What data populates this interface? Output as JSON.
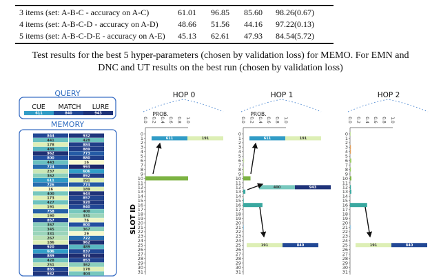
{
  "table": {
    "rows": [
      {
        "label": "3 items (set: A-B-C - accuracy on A-C)",
        "values": [
          "61.01",
          "96.85",
          "85.60",
          "98.26(0.67)"
        ]
      },
      {
        "label": "4 items (set: A-B-C-D - accuracy on A-D)",
        "values": [
          "48.66",
          "51.56",
          "44.16",
          "97.22(0.13)"
        ]
      },
      {
        "label": "5 items (set: A-B-C-D-E - accuracy on A-E)",
        "values": [
          "45.13",
          "62.61",
          "47.93",
          "84.54(5.72)"
        ]
      }
    ]
  },
  "caption": {
    "line1": "Test results for the best 5 hyper-parameters (chosen by validation loss) for MEMO. For EMN and",
    "line2": "DNC and UT results on the best run (chosen by validation loss)"
  },
  "figure": {
    "query": {
      "title": "QUERY",
      "labels": [
        "CUE",
        "MATCH",
        "LURE"
      ],
      "values": [
        "611",
        "840",
        "943"
      ]
    },
    "memory": {
      "title": "MEMORY",
      "rows": [
        [
          "844",
          "932"
        ],
        [
          "441",
          "428"
        ],
        [
          "178",
          "884"
        ],
        [
          "489",
          "889"
        ],
        [
          "962",
          "773"
        ],
        [
          "800",
          "880"
        ],
        [
          "443",
          "16"
        ],
        [
          "724",
          "993"
        ],
        [
          "237",
          "606"
        ],
        [
          "362",
          "892"
        ],
        [
          "611",
          "191"
        ],
        [
          "726",
          "774"
        ],
        [
          "16",
          "189"
        ],
        [
          "400",
          "943"
        ],
        [
          "173",
          "857"
        ],
        [
          "427",
          "920"
        ],
        [
          "191",
          "840"
        ],
        [
          "758",
          "400"
        ],
        [
          "190",
          "331"
        ],
        [
          "857",
          "76"
        ],
        [
          "367",
          "800"
        ],
        [
          "345",
          "367"
        ],
        [
          "331",
          "29"
        ],
        [
          "267",
          "722"
        ],
        [
          "186",
          "962"
        ],
        [
          "920",
          "489"
        ],
        [
          "606",
          "837"
        ],
        [
          "889",
          "974"
        ],
        [
          "428",
          "853"
        ],
        [
          "251",
          "362"
        ],
        [
          "855",
          "178"
        ],
        [
          "932",
          "404"
        ]
      ]
    },
    "y_axis_label": "SLOT ID",
    "x_axis_label": "PROB.",
    "x_ticks": [
      "0.0",
      "0.2",
      "0.4",
      "0.6",
      "0.8",
      "1.0"
    ],
    "slots": [
      "0",
      "1",
      "2",
      "3",
      "4",
      "5",
      "6",
      "7",
      "8",
      "9",
      "10",
      "11",
      "12",
      "13",
      "14",
      "15",
      "16",
      "17",
      "18",
      "19",
      "20",
      "21",
      "22",
      "23",
      "24",
      "25",
      "26",
      "27",
      "28",
      "29",
      "30",
      "31"
    ],
    "hops": [
      {
        "title": "HOP 0",
        "attention": [
          {
            "slot": 10,
            "prob": 1.0,
            "color": "#7cb342"
          }
        ],
        "retrieved": [
          {
            "slot": 1,
            "values": [
              "611",
              "191"
            ]
          }
        ]
      },
      {
        "title": "HOP 1",
        "attention": [
          {
            "slot": 6,
            "prob": 0.02,
            "color": "#c5e1a5"
          },
          {
            "slot": 8,
            "prob": 0.01,
            "color": "#c5e1a5"
          },
          {
            "slot": 9,
            "prob": 0.01,
            "color": "#c5e1a5"
          },
          {
            "slot": 10,
            "prob": 0.17,
            "color": "#7cb342"
          },
          {
            "slot": 13,
            "prob": 0.05,
            "color": "#3aa8a0"
          },
          {
            "slot": 15,
            "prob": 0.01,
            "color": "#6cc3bd"
          },
          {
            "slot": 16,
            "prob": 0.45,
            "color": "#3aa8a0"
          },
          {
            "slot": 21,
            "prob": 0.01,
            "color": "#9ecae1"
          }
        ],
        "retrieved": [
          {
            "slot": 1,
            "values": [
              "611",
              "191"
            ]
          },
          {
            "slot": 12,
            "values": [
              "400",
              "943"
            ]
          },
          {
            "slot": 25,
            "values": [
              "191",
              "840"
            ]
          }
        ]
      },
      {
        "title": "HOP 2",
        "attention": [
          {
            "slot": 0,
            "prob": 0.01,
            "color": "#c5e1a5"
          },
          {
            "slot": 3,
            "prob": 0.02,
            "color": "#e0a060"
          },
          {
            "slot": 4,
            "prob": 0.02,
            "color": "#e0a060"
          },
          {
            "slot": 6,
            "prob": 0.03,
            "color": "#9ccc65"
          },
          {
            "slot": 8,
            "prob": 0.02,
            "color": "#9ccc65"
          },
          {
            "slot": 10,
            "prob": 0.03,
            "color": "#7cb342"
          },
          {
            "slot": 12,
            "prob": 0.02,
            "color": "#3aa8a0"
          },
          {
            "slot": 13,
            "prob": 0.03,
            "color": "#3aa8a0"
          },
          {
            "slot": 16,
            "prob": 0.4,
            "color": "#3aa8a0"
          },
          {
            "slot": 21,
            "prob": 0.02,
            "color": "#9ecae1"
          }
        ],
        "retrieved": [
          {
            "slot": 25,
            "values": [
              "191",
              "840"
            ]
          }
        ]
      }
    ],
    "colors": {
      "frame": "#3b6fc4",
      "title": "#2f6cc0",
      "arrow": "#111111"
    }
  }
}
